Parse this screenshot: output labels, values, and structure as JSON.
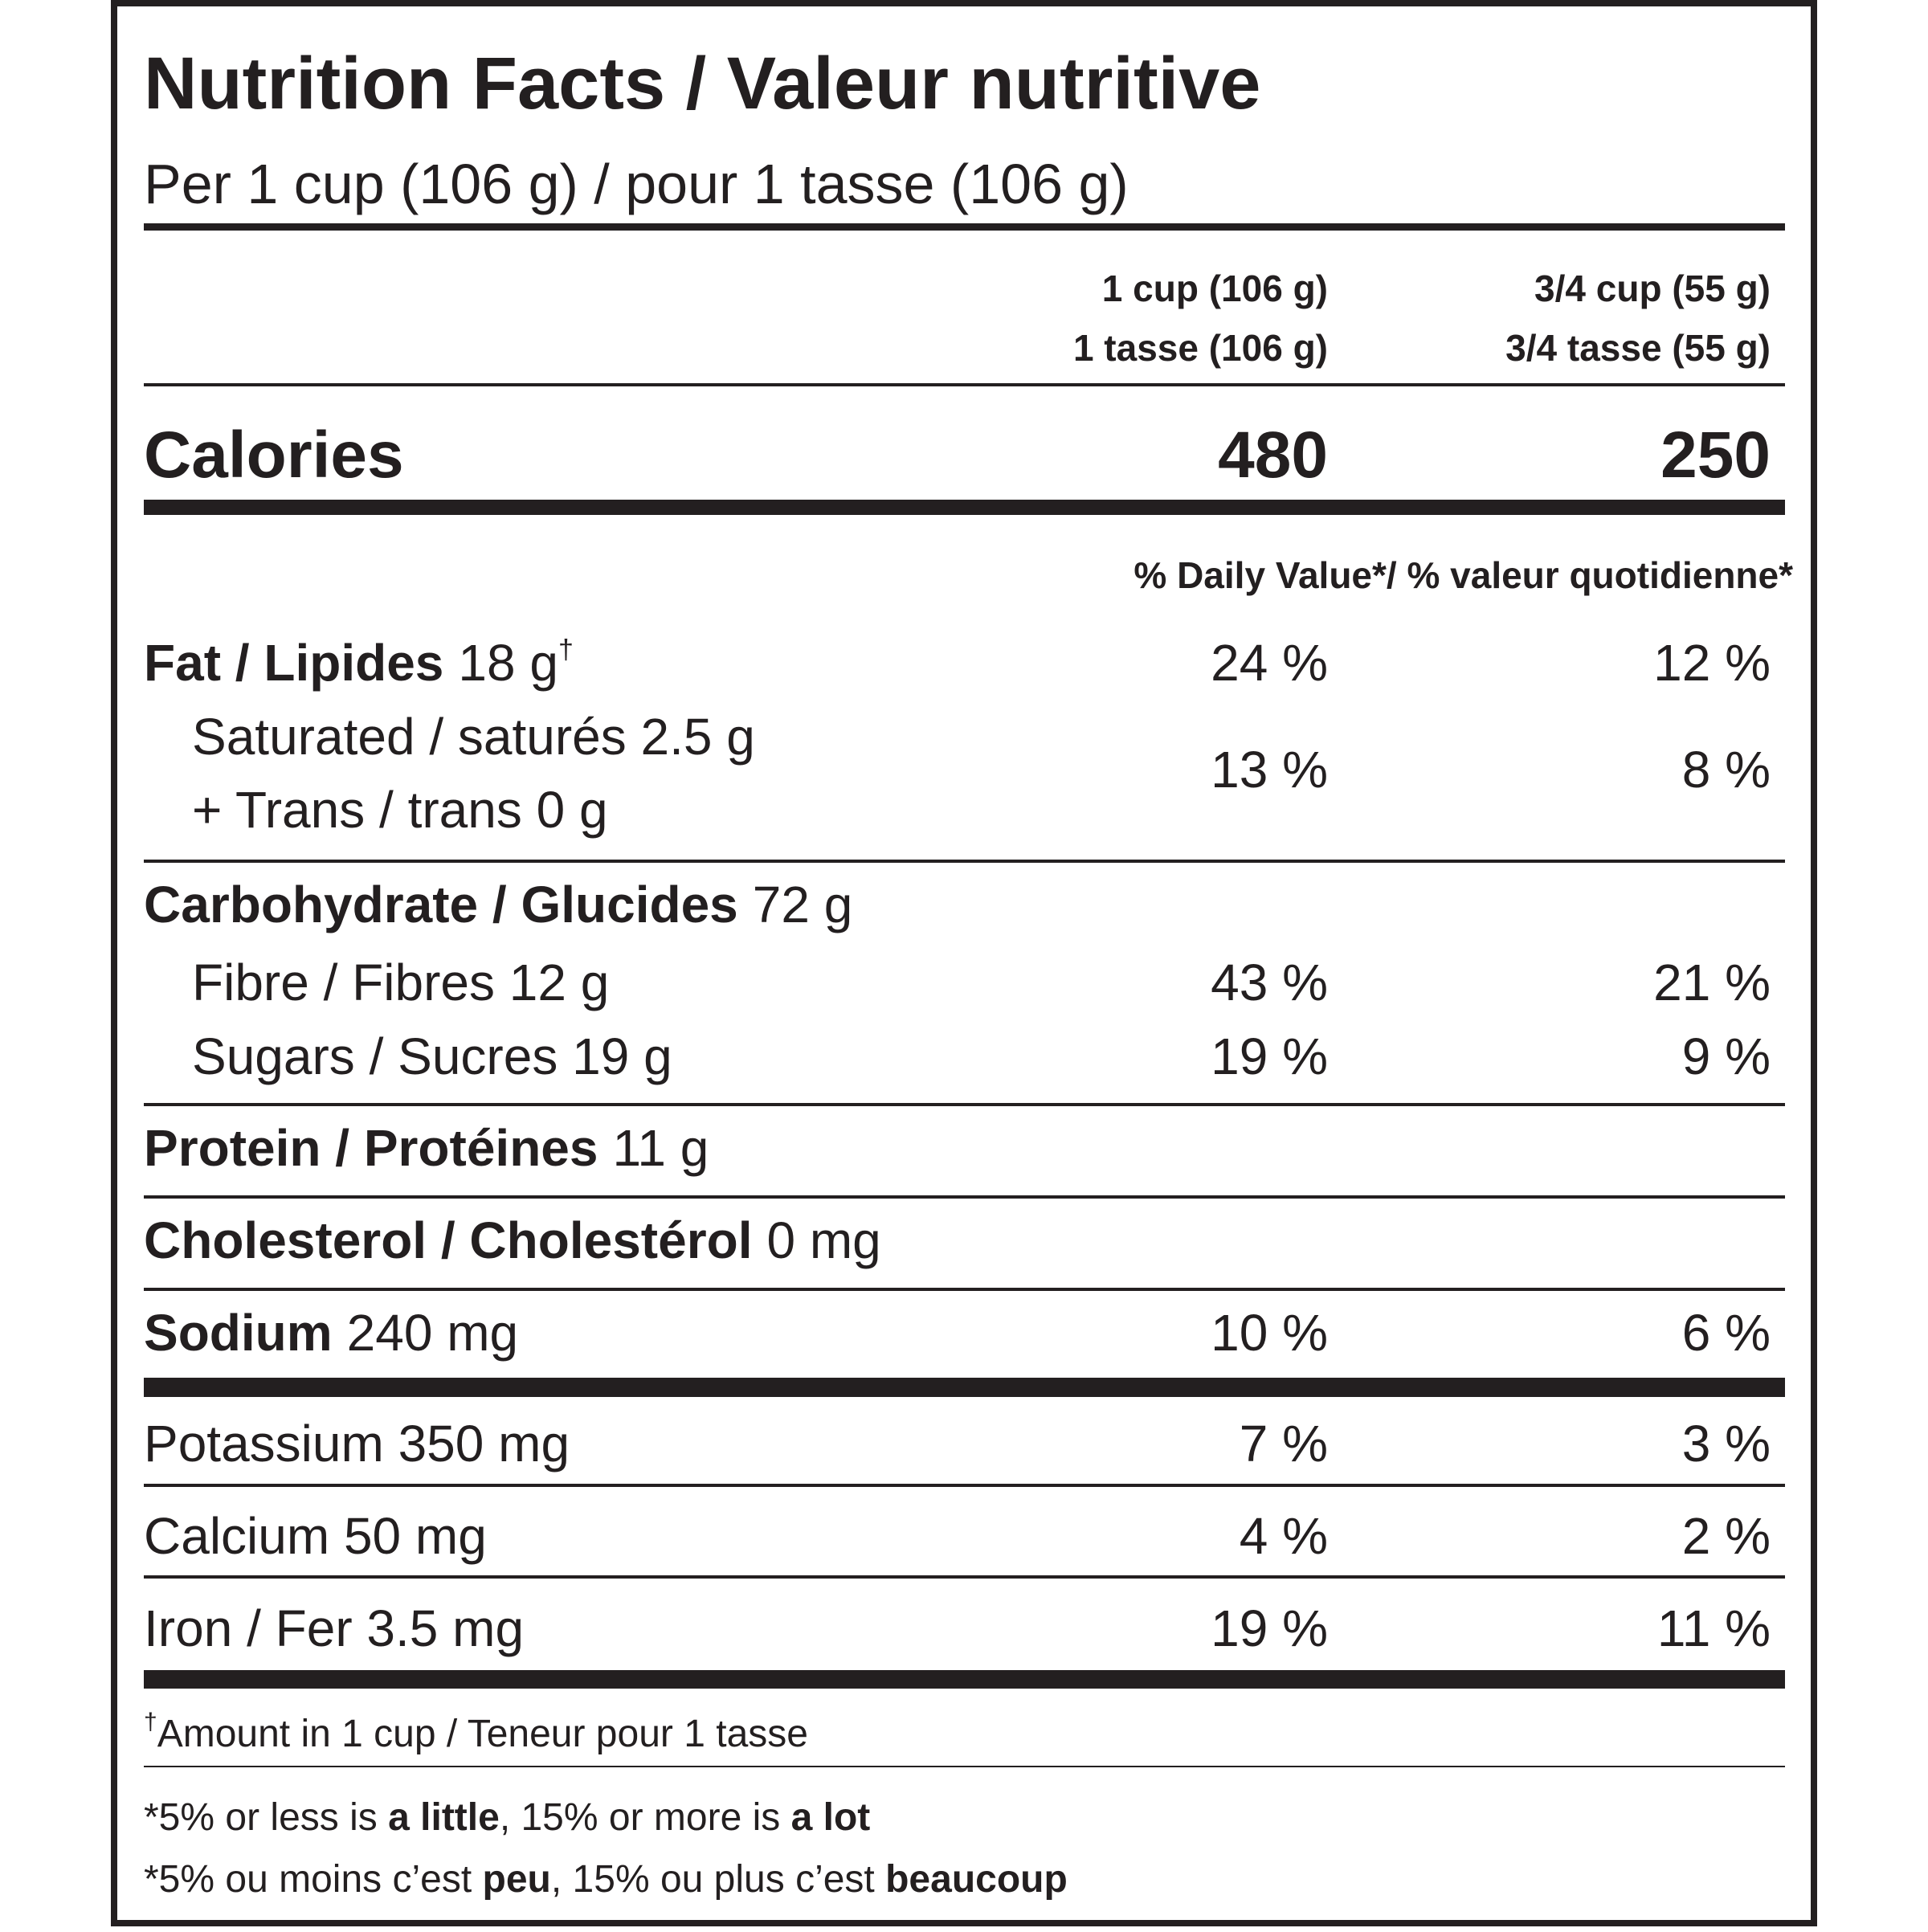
{
  "title": "Nutrition Facts / Valeur nutritive",
  "serving": "Per 1 cup (106 g) / pour 1 tasse (106 g)",
  "columns": [
    [
      "1 cup (106 g)",
      "1 tasse (106 g)"
    ],
    [
      "3/4 cup (55 g)",
      "3/4 tasse (55 g)"
    ]
  ],
  "calories": {
    "label": "Calories",
    "values": [
      "480",
      "250"
    ]
  },
  "dv_header": "% Daily Value*/ % valeur quotidienne*",
  "rows": [
    {
      "bold": "Fat / Lipides",
      "text": "18 g",
      "mark": "†",
      "dv": [
        "24 %",
        "12 %"
      ]
    },
    {
      "lines": [
        "Saturated / saturés 2.5 g",
        "+ Trans / trans 0 g"
      ],
      "dv": [
        "13 %",
        "8 %"
      ]
    },
    {
      "bold": "Carbohydrate / Glucides",
      "text": "72 g"
    },
    {
      "text": "Fibre / Fibres 12 g",
      "dv": [
        "43 %",
        "21 %"
      ]
    },
    {
      "text": "Sugars / Sucres 19 g",
      "dv": [
        "19 %",
        "9 %"
      ]
    },
    {
      "bold": "Protein / Protéines",
      "text": "11 g"
    },
    {
      "bold": "Cholesterol / Cholestérol",
      "text": "0 mg"
    },
    {
      "bold": "Sodium",
      "text": "240 mg",
      "dv": [
        "10 %",
        "6 %"
      ]
    },
    {
      "text": "Potassium 350 mg",
      "dv": [
        "7 %",
        "3 %"
      ]
    },
    {
      "text": "Calcium 50 mg",
      "dv": [
        "4 %",
        "2 %"
      ]
    },
    {
      "text": "Iron / Fer 3.5 mg",
      "dv": [
        "19 %",
        "11 %"
      ]
    }
  ],
  "footnote": {
    "mark": "†",
    "text": "Amount in 1 cup / Teneur pour 1 tasse"
  },
  "notes": [
    [
      "*5% or less is ",
      "a little",
      ", 15% or more is ",
      "a lot"
    ],
    [
      "*5% ou moins c’est ",
      "peu",
      ", 15% ou plus c’est ",
      "beaucoup"
    ]
  ]
}
